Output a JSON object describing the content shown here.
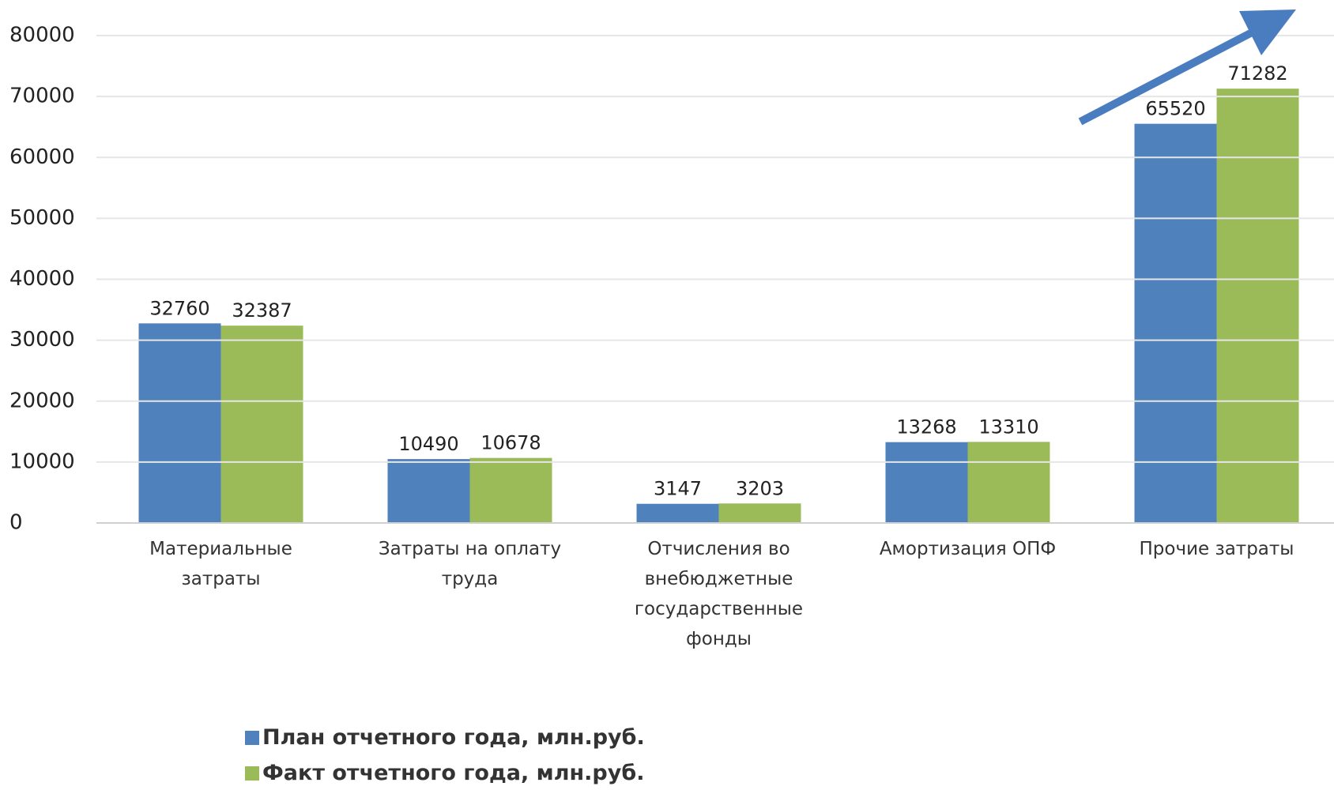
{
  "chart_data": {
    "type": "bar",
    "categories": [
      "Материальные затраты",
      "Затраты на оплату труда",
      "Отчисления во внебюджетные государственные фонды",
      "Амортизация ОПФ",
      "Прочие затраты"
    ],
    "series": [
      {
        "name": "План отчетного года, млн.руб.",
        "color": "#4f81bd",
        "values": [
          32760,
          10490,
          3147,
          13268,
          65520
        ]
      },
      {
        "name": "Факт отчетного года, млн.руб.",
        "color": "#9bbb59",
        "values": [
          32387,
          10678,
          3203,
          13310,
          71282
        ]
      }
    ],
    "ylim": [
      0,
      80000
    ],
    "yticks": [
      0,
      10000,
      20000,
      30000,
      40000,
      50000,
      60000,
      70000,
      80000
    ],
    "grid": true,
    "legend": "bottom"
  }
}
